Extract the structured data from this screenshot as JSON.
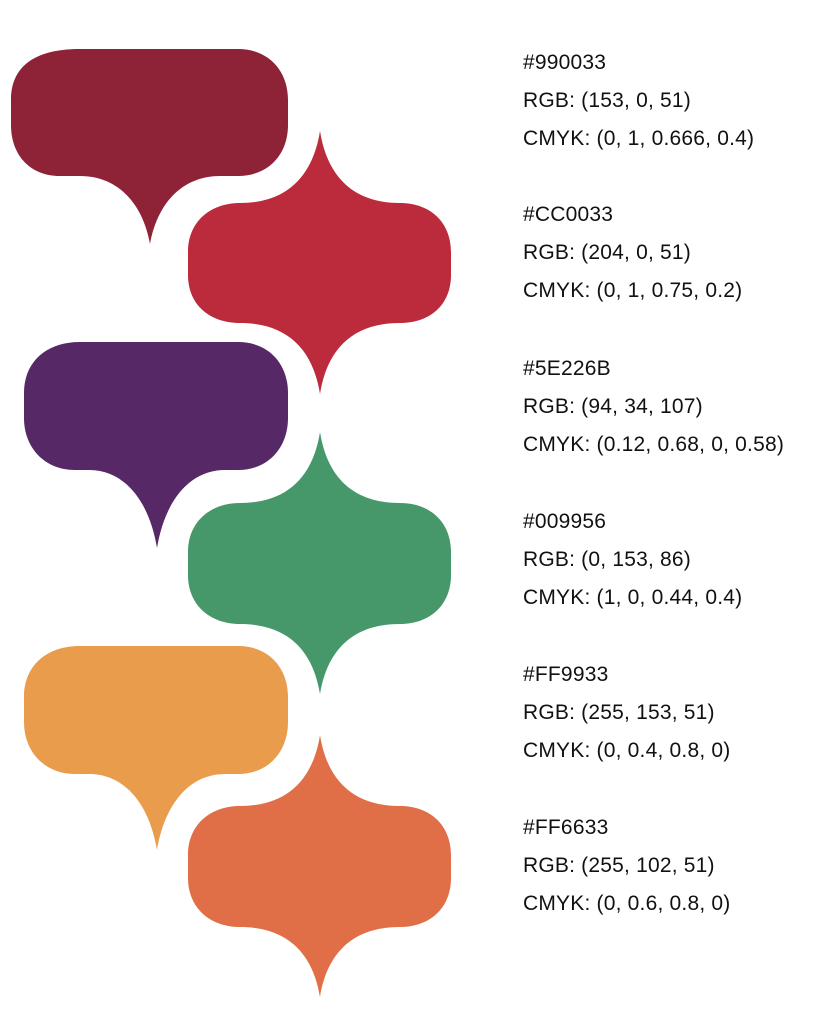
{
  "palette": [
    {
      "hex_label": "#990033",
      "rgb_label": "RGB: (153, 0, 51)",
      "cmyk_label": "CMYK: (0, 1, 0.666, 0.4)",
      "display_color": "#8e2337",
      "shape": "drop-down"
    },
    {
      "hex_label": "#CC0033",
      "rgb_label": "RGB: (204, 0, 51)",
      "cmyk_label": "CMYK: (0, 1, 0.75, 0.2)",
      "display_color": "#bb2b3b",
      "shape": "diamond"
    },
    {
      "hex_label": "#5E226B",
      "rgb_label": "RGB: (94, 34, 107)",
      "cmyk_label": "CMYK: (0.12, 0.68, 0, 0.58)",
      "display_color": "#572866",
      "shape": "drop-down"
    },
    {
      "hex_label": "#009956",
      "rgb_label": "RGB: (0, 153, 86)",
      "cmyk_label": "CMYK: (1, 0, 0.44, 0.4)",
      "display_color": "#46976a",
      "shape": "diamond"
    },
    {
      "hex_label": "#FF9933",
      "rgb_label": "RGB: (255, 153, 51)",
      "cmyk_label": "CMYK: (0, 0.4, 0.8, 0)",
      "display_color": "#e99c4c",
      "shape": "drop-down"
    },
    {
      "hex_label": "#FF6633",
      "rgb_label": "RGB: (255, 102, 51)",
      "cmyk_label": "CMYK: (0, 0.6, 0.8, 0)",
      "display_color": "#e06f48",
      "shape": "diamond"
    }
  ]
}
